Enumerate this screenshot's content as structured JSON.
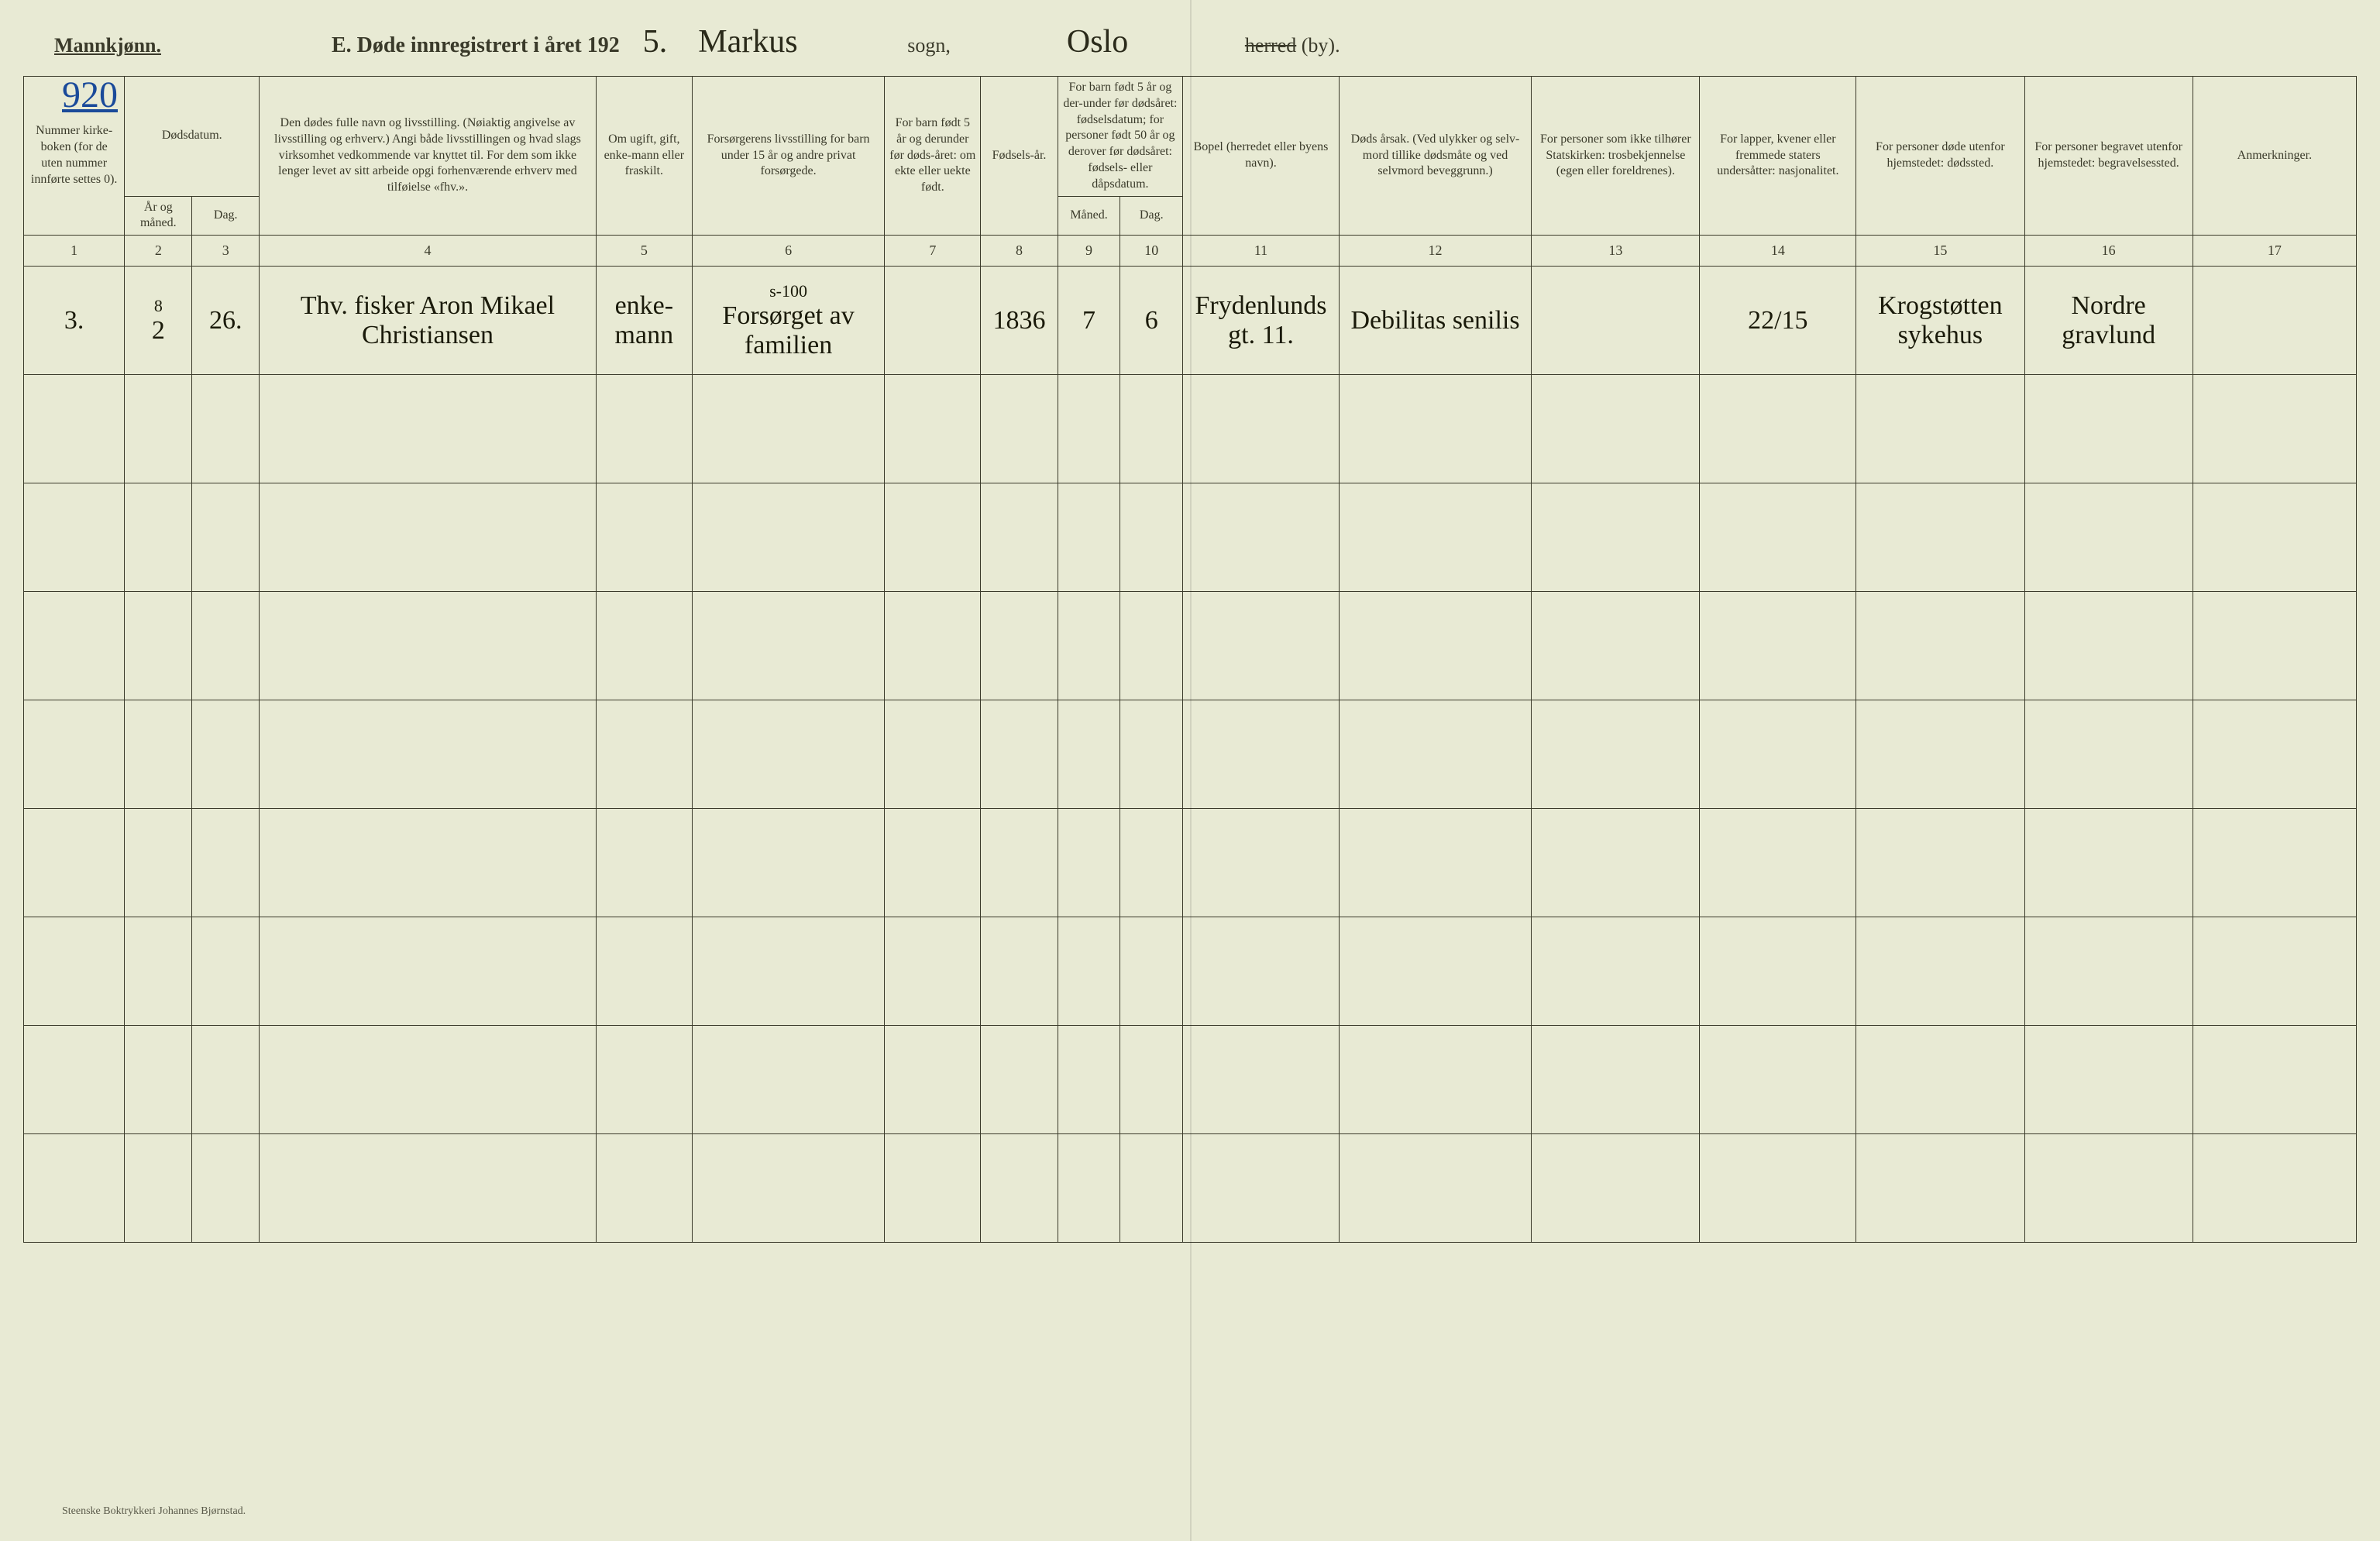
{
  "header": {
    "gender_label": "Mannkjønn.",
    "title_prefix": "E.  Døde innregistrert i året 192",
    "year_suffix": "5.",
    "parish_handwritten": "Markus",
    "sogn_label": "sogn,",
    "city_handwritten": "Oslo",
    "herred_struck": "herred",
    "herred_suffix": "(by).",
    "page_number": "920"
  },
  "columns": {
    "c1": "Nummer kirke-boken (for de uten nummer innførte settes 0).",
    "c2a": "Dødsdatum.",
    "c2_year": "År og måned.",
    "c2_day": "Dag.",
    "c4": "Den dødes fulle navn og livsstilling. (Nøiaktig angivelse av livsstilling og erhverv.) Angi både livsstillingen og hvad slags virksomhet vedkommende var knyttet til. For dem som ikke lenger levet av sitt arbeide opgi forhenværende erhverv med tilføielse «fhv.».",
    "c5": "Om ugift, gift, enke-mann eller fraskilt.",
    "c6": "Forsørgerens livsstilling for barn under 15 år og andre privat forsørgede.",
    "c7": "For barn født 5 år og derunder før døds-året: om ekte eller uekte født.",
    "c8": "Fødsels-år.",
    "c9_10": "For barn født 5 år og der-under før dødsåret: fødselsdatum; for personer født 50 år og derover før dødsåret: fødsels- eller dåpsdatum.",
    "c9": "Måned.",
    "c10": "Dag.",
    "c11": "Bopel (herredet eller byens navn).",
    "c12": "Døds årsak. (Ved ulykker og selv-mord tillike dødsmåte og ved selvmord beveggrunn.)",
    "c13": "For personer som ikke tilhører Statskirken: trosbekjennelse (egen eller foreldrenes).",
    "c14": "For lapper, kvener eller fremmede staters undersåtter: nasjonalitet.",
    "c15": "For personer døde utenfor hjemstedet: dødssted.",
    "c16": "For personer begravet utenfor hjemstedet: begravelsessted.",
    "c17": "Anmerkninger."
  },
  "colnums": [
    "1",
    "2",
    "3",
    "4",
    "5",
    "6",
    "7",
    "8",
    "9",
    "10",
    "11",
    "12",
    "13",
    "14",
    "15",
    "16",
    "17"
  ],
  "rows": [
    {
      "num": "3.",
      "year_month_top": "8",
      "year_month": "2",
      "day": "26.",
      "name": "Thv. fisker Aron Mikael Christiansen",
      "status": "enke-mann",
      "forsorger_top": "s-100",
      "forsorger": "Forsørget av familien",
      "c7": "",
      "birth_year": "1836",
      "birth_month": "7",
      "birth_day": "6",
      "bopel": "Frydenlunds gt. 11.",
      "cause": "Debilitas senilis",
      "c13": "",
      "c14": "22/15",
      "c15": "Krogstøtten sykehus",
      "c16": "Nordre gravlund",
      "c17": ""
    }
  ],
  "empty_rows": 8,
  "footer": "Steenske Boktrykkeri Johannes Bjørnstad.",
  "colors": {
    "bg": "#e8ead4",
    "line": "#3a3a2a",
    "ink": "#1a1a0a",
    "blue_ink": "#1a4a9a"
  },
  "layout": {
    "col_widths_pct": [
      4.2,
      2.8,
      2.8,
      14.0,
      4.0,
      8.0,
      4.0,
      3.2,
      2.6,
      2.6,
      6.5,
      8.0,
      7.0,
      6.5,
      7.0,
      7.0,
      6.8
    ]
  }
}
